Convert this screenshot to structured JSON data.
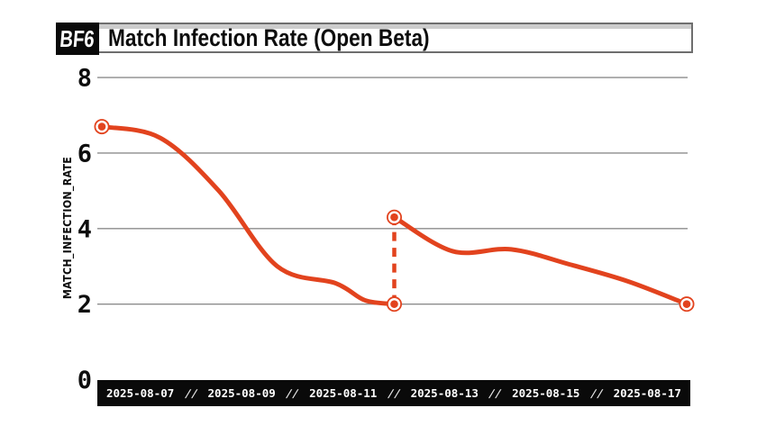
{
  "header": {
    "badge": "BF6",
    "title": "Match Infection Rate (Open Beta)"
  },
  "chart_data": {
    "type": "line",
    "title": "Match Infection Rate (Open Beta)",
    "xlabel": "",
    "ylabel": "MATCH_INFECTION_RATE",
    "ylim": [
      0,
      8
    ],
    "yticks": [
      0,
      2,
      4,
      6,
      8
    ],
    "grid": true,
    "legend": "none",
    "x_unit_days_since": "2025-08-07",
    "x_tick_labels": [
      "2025-08-07",
      "2025-08-09",
      "2025-08-11",
      "2025-08-13",
      "2025-08-15",
      "2025-08-17"
    ],
    "tick_separator": "//",
    "line_color": "#E2431E",
    "grid_color": "#8C8C8C",
    "axis_bar_bg": "#0A0A0A",
    "axis_bar_text": "#FFFFFF",
    "segments": [
      {
        "name": "segment-1",
        "x": [
          0,
          1,
          2,
          3,
          4,
          4.5,
          5
        ],
        "values": [
          6.7,
          6.4,
          5.0,
          3.0,
          2.55,
          2.1,
          2.0
        ]
      },
      {
        "name": "segment-2",
        "x": [
          5,
          6,
          7,
          8,
          9,
          10
        ],
        "values": [
          4.3,
          3.4,
          3.45,
          3.05,
          2.6,
          2.0
        ]
      }
    ],
    "gap_connector": {
      "x": 5,
      "from": 2.0,
      "to": 4.3,
      "style": "dashed"
    }
  }
}
